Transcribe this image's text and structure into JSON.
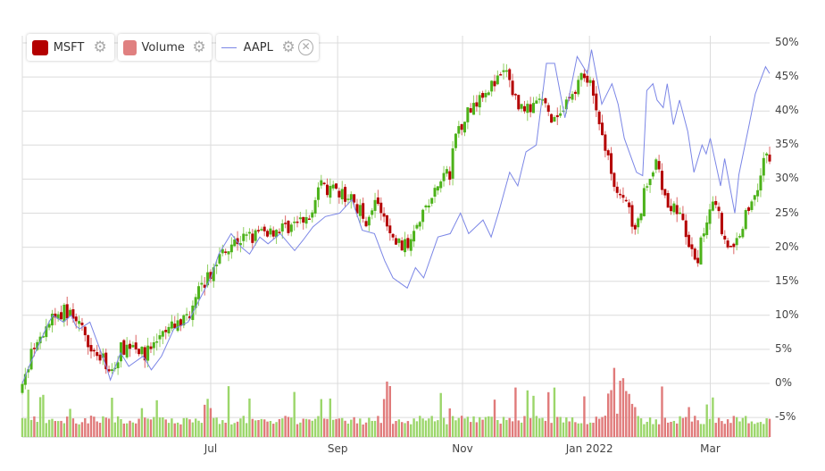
{
  "legend": {
    "msft": {
      "label": "MSFT",
      "color": "#b40000"
    },
    "volume": {
      "label": "Volume",
      "color": "#e08080"
    },
    "aapl": {
      "label": "AAPL",
      "color": "#7b86e6"
    }
  },
  "chart_data": {
    "type": "candlestick+line+bar",
    "x_unit": "calendar days from start (approx. 30 Mar 2021)",
    "x_range": [
      0,
      365
    ],
    "y_range_percent": [
      -5,
      50
    ],
    "y_ticks": [
      "50%",
      "45%",
      "40%",
      "35%",
      "30%",
      "25%",
      "20%",
      "15%",
      "10%",
      "5%",
      "0%",
      "-5%"
    ],
    "y_tick_values": [
      50,
      45,
      40,
      35,
      30,
      25,
      20,
      15,
      10,
      5,
      0,
      -5
    ],
    "x_ticks": [
      {
        "label": "Jul",
        "day": 92
      },
      {
        "label": "Sep",
        "day": 154
      },
      {
        "label": "Nov",
        "day": 215
      },
      {
        "label": "Jan 2022",
        "day": 277
      },
      {
        "label": "Mar",
        "day": 336
      }
    ],
    "msft_close_path": [
      [
        0,
        -1
      ],
      [
        4,
        4
      ],
      [
        9,
        6
      ],
      [
        13,
        9
      ],
      [
        20,
        10.5
      ],
      [
        26,
        10
      ],
      [
        28,
        8
      ],
      [
        33,
        6
      ],
      [
        37,
        4
      ],
      [
        44,
        2
      ],
      [
        48,
        5
      ],
      [
        55,
        6
      ],
      [
        59,
        4
      ],
      [
        65,
        6
      ],
      [
        72,
        8
      ],
      [
        79,
        9.5
      ],
      [
        83,
        11
      ],
      [
        87,
        14
      ],
      [
        94,
        17
      ],
      [
        98,
        20
      ],
      [
        105,
        21
      ],
      [
        116,
        22
      ],
      [
        122,
        22.5
      ],
      [
        129,
        23
      ],
      [
        140,
        24
      ],
      [
        144,
        29
      ],
      [
        153,
        28
      ],
      [
        161,
        27
      ],
      [
        168,
        24
      ],
      [
        172,
        27
      ],
      [
        181,
        21
      ],
      [
        188,
        20
      ],
      [
        192,
        24
      ],
      [
        198,
        26
      ],
      [
        205,
        30
      ],
      [
        209,
        31
      ],
      [
        212,
        37
      ],
      [
        218,
        40
      ],
      [
        225,
        43
      ],
      [
        231,
        44
      ],
      [
        236,
        46
      ],
      [
        242,
        41
      ],
      [
        249,
        40
      ],
      [
        253,
        42
      ],
      [
        259,
        38
      ],
      [
        266,
        41
      ],
      [
        273,
        45
      ],
      [
        277,
        44
      ],
      [
        281,
        39
      ],
      [
        286,
        33
      ],
      [
        290,
        29
      ],
      [
        294,
        27
      ],
      [
        300,
        22
      ],
      [
        305,
        30
      ],
      [
        310,
        32
      ],
      [
        314,
        27
      ],
      [
        321,
        25
      ],
      [
        326,
        20
      ],
      [
        329,
        17
      ],
      [
        334,
        24
      ],
      [
        338,
        28
      ],
      [
        342,
        22
      ],
      [
        347,
        19
      ],
      [
        351,
        23
      ],
      [
        358,
        28
      ],
      [
        362,
        33
      ],
      [
        365,
        33
      ]
    ],
    "aapl": [
      [
        0,
        0
      ],
      [
        4,
        3
      ],
      [
        7,
        5
      ],
      [
        13,
        9
      ],
      [
        15,
        10
      ],
      [
        20,
        9
      ],
      [
        24,
        10
      ],
      [
        26,
        8.5
      ],
      [
        28,
        8
      ],
      [
        33,
        9
      ],
      [
        41,
        2.5
      ],
      [
        43,
        0.5
      ],
      [
        48,
        4.5
      ],
      [
        52,
        2.5
      ],
      [
        59,
        4
      ],
      [
        63,
        2
      ],
      [
        68,
        4
      ],
      [
        74,
        8
      ],
      [
        81,
        9
      ],
      [
        86,
        12
      ],
      [
        92,
        15.5
      ],
      [
        96,
        19
      ],
      [
        102,
        22
      ],
      [
        107,
        20
      ],
      [
        111,
        19
      ],
      [
        116,
        21.5
      ],
      [
        120,
        20.5
      ],
      [
        126,
        22
      ],
      [
        133,
        19.5
      ],
      [
        137,
        21
      ],
      [
        142,
        23
      ],
      [
        148,
        24.5
      ],
      [
        155,
        25
      ],
      [
        161,
        27
      ],
      [
        166,
        22.5
      ],
      [
        172,
        22
      ],
      [
        177,
        18
      ],
      [
        181,
        15.5
      ],
      [
        188,
        14
      ],
      [
        192,
        17
      ],
      [
        196,
        15.5
      ],
      [
        203,
        21.5
      ],
      [
        209,
        22
      ],
      [
        214,
        25
      ],
      [
        218,
        22
      ],
      [
        225,
        24
      ],
      [
        229,
        21.5
      ],
      [
        233,
        25.5
      ],
      [
        238,
        31
      ],
      [
        242,
        29
      ],
      [
        246,
        34
      ],
      [
        251,
        35
      ],
      [
        256,
        47
      ],
      [
        260,
        47
      ],
      [
        265,
        39
      ],
      [
        271,
        48
      ],
      [
        276,
        45.5
      ],
      [
        278,
        49
      ],
      [
        283,
        41
      ],
      [
        288,
        44
      ],
      [
        291,
        41
      ],
      [
        294,
        36
      ],
      [
        300,
        31
      ],
      [
        303,
        30.5
      ],
      [
        305,
        43
      ],
      [
        308,
        44
      ],
      [
        310,
        41.6
      ],
      [
        313,
        40.5
      ],
      [
        315,
        44
      ],
      [
        318,
        38
      ],
      [
        321,
        41.6
      ],
      [
        325,
        37
      ],
      [
        328,
        31
      ],
      [
        332,
        35
      ],
      [
        334,
        33.7
      ],
      [
        336,
        36
      ],
      [
        341,
        29
      ],
      [
        343,
        33
      ],
      [
        348,
        25
      ],
      [
        350,
        30.7
      ],
      [
        355,
        38
      ],
      [
        358,
        42.5
      ],
      [
        363,
        46.5
      ],
      [
        365,
        45.5
      ]
    ],
    "volume_note": "daily volume bars, green = up day, red = down day"
  }
}
